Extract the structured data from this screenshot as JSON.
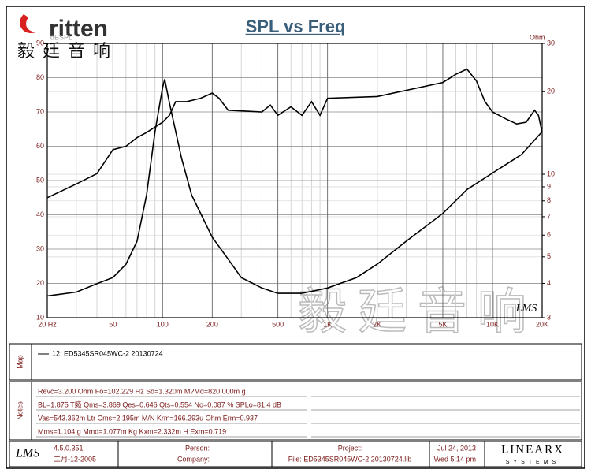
{
  "header": {
    "logo": "ritten",
    "logo_cn": "毅廷音响"
  },
  "chart_data": {
    "type": "line",
    "title": "SPL vs Freq",
    "y_label": "dBSPL",
    "y2_label": "Ohm",
    "xlog": true,
    "y2log": true,
    "grid": true,
    "xlim": [
      20,
      20000
    ],
    "ylim": [
      10,
      90
    ],
    "y2lim": [
      3,
      30
    ],
    "xticks": [
      {
        "value": 20,
        "label": "20 Hz"
      },
      50,
      100,
      200,
      500,
      {
        "value": 1000,
        "label": "1K"
      },
      {
        "value": 2000,
        "label": "2K"
      },
      {
        "value": 5000,
        "label": "5K"
      },
      {
        "value": 10000,
        "label": "10K"
      },
      {
        "value": 20000,
        "label": "20K"
      }
    ],
    "xminorticks": [
      30,
      40,
      60,
      70,
      80,
      90,
      300,
      400,
      600,
      700,
      800,
      900,
      3000,
      4000,
      6000,
      7000,
      8000,
      9000
    ],
    "yticks": [
      10,
      20,
      30,
      40,
      50,
      60,
      70,
      80,
      90
    ],
    "y2ticks": [
      3,
      4,
      5,
      6,
      7,
      8,
      9,
      10,
      20,
      30
    ],
    "series": [
      {
        "color": "#000000",
        "x": [
          20,
          30,
          40,
          50,
          60,
          70,
          80,
          100,
          110,
          120,
          140,
          170,
          200,
          220,
          250,
          400,
          450,
          500,
          600,
          700,
          800,
          900,
          1000,
          2000,
          5000,
          6000,
          7000,
          8000,
          9000,
          10000,
          12000,
          14000,
          16000,
          18000,
          19000,
          20000
        ],
        "values": [
          45,
          49,
          52,
          59,
          60,
          62.5,
          64,
          67,
          69,
          73,
          73,
          74,
          75.5,
          74,
          70.5,
          70,
          72,
          69,
          71.5,
          69,
          73,
          69,
          74,
          74.5,
          78.6,
          81,
          82.5,
          79,
          73,
          70,
          68,
          66.5,
          67,
          70.5,
          69,
          64
        ]
      },
      {
        "color": "#000000",
        "axis": "y2",
        "x": [
          20,
          30,
          40,
          50,
          60,
          70,
          80,
          90,
          100,
          103,
          110,
          130,
          150,
          200,
          250,
          300,
          400,
          500,
          700,
          1000,
          1500,
          2000,
          3000,
          5000,
          7000,
          10000,
          15000,
          20000
        ],
        "values": [
          3.6,
          3.72,
          3.99,
          4.2,
          4.7,
          5.7,
          8.4,
          14.3,
          20.7,
          22.2,
          18.2,
          11.5,
          8.4,
          5.9,
          4.9,
          4.2,
          3.85,
          3.68,
          3.68,
          3.85,
          4.2,
          4.7,
          5.7,
          7.2,
          8.8,
          10.1,
          11.8,
          14.3
        ]
      }
    ],
    "signature": "LMS",
    "watermark": "毅廷音响"
  },
  "map": {
    "label": "Map",
    "entry": "12: ED5345SR045WC-2  20130724"
  },
  "notes": {
    "label": "Notes",
    "lines": [
      "Revc=3.200 Ohm  Fo=102.229 Hz  Sd=1.320m M?Md=820.000m g",
      "BL=1.875 T籁  Qms=3.869  Qes=0.646  Qts=0.554  No=0.087 %  SPLo=81.4 dB",
      "Vas=543.362m Ltr  Cms=2.195m M/N  Krm=166.293u Ohm  Erm=0.937",
      "Mms=1.104 g  Mmd=1.077m Kg  Kxm=2.332m H  Exm=0.719"
    ]
  },
  "footer": {
    "app": "LMS",
    "version": "4.5.0.351",
    "build_date": "二月-12-2005",
    "person_label": "Person:",
    "company_label": "Company:",
    "project_label": "Project:",
    "file": "File: ED5345SR045WC-2  20130724.lib",
    "date": "Jul 24, 2013",
    "time": "Wed  5:14 pm",
    "brand": "LINEARX",
    "brand_sub": "SYSTEMS"
  }
}
